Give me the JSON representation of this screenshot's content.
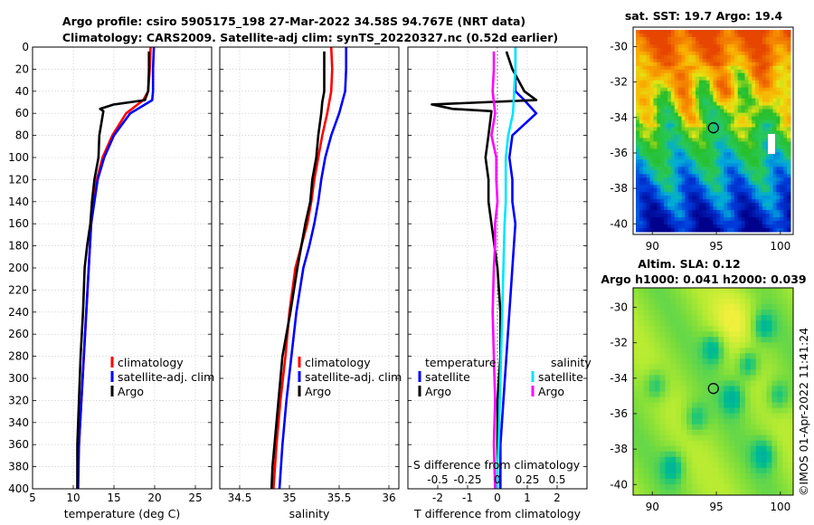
{
  "titles": {
    "line1": "Argo profile: csiro 5905175_198 27-Mar-2022 34.58S 94.767E (NRT data)",
    "line2": "Climatology: CARS2009. Satellite-adj clim: synTS_20220327.nc (0.52d earlier)",
    "sst": "sat. SST: 19.7 Argo: 19.4",
    "sla1": "Altim. SLA: 0.12",
    "sla2": "Argo h1000: 0.041 h2000: 0.039",
    "credit": "©IMOS 01-Apr-2022 11:41:24"
  },
  "colors": {
    "climatology": "#ff0000",
    "satellite": "#0000ff",
    "argo": "#000000",
    "sal_satellite": "#00e5ff",
    "sal_argo": "#ff00ff"
  },
  "chart_data": [
    {
      "type": "line",
      "title": "",
      "xlabel": "temperature (deg C)",
      "ylabel": "",
      "xlim": [
        5,
        27
      ],
      "ylim": [
        400,
        0
      ],
      "xticks": [
        "5",
        "10",
        "15",
        "20",
        "25"
      ],
      "yticks": [
        "0",
        "20",
        "40",
        "60",
        "80",
        "100",
        "120",
        "140",
        "160",
        "180",
        "200",
        "220",
        "240",
        "260",
        "280",
        "300",
        "320",
        "340",
        "360",
        "380",
        "400"
      ],
      "grid": true,
      "legend": {
        "position": "center-right",
        "entries": [
          "climatology",
          "satellite-adj. clim",
          "Argo"
        ]
      },
      "series": [
        {
          "name": "climatology",
          "color": "#ff0000",
          "x": [
            19.5,
            19.4,
            19.2,
            18.6,
            16.5,
            14.8,
            13.6,
            12.9,
            12.5,
            12.2,
            11.9,
            11.6,
            11.3,
            11.0,
            10.7,
            10.5
          ],
          "y": [
            0,
            20,
            40,
            48,
            60,
            80,
            100,
            120,
            140,
            160,
            200,
            240,
            280,
            320,
            360,
            400
          ]
        },
        {
          "name": "satellite-adj. clim",
          "color": "#0000ff",
          "x": [
            19.9,
            19.8,
            19.8,
            19.7,
            17.0,
            15.0,
            13.8,
            13.0,
            12.6,
            12.2,
            11.9,
            11.6,
            11.3,
            11.0,
            10.7,
            10.6
          ],
          "y": [
            0,
            20,
            40,
            48,
            60,
            80,
            100,
            120,
            140,
            160,
            200,
            240,
            280,
            320,
            360,
            400
          ]
        },
        {
          "name": "Argo",
          "color": "#000000",
          "x": [
            19.3,
            19.3,
            19.2,
            18.8,
            15.0,
            13.3,
            13.7,
            13.2,
            13.1,
            12.6,
            12.3,
            12.1,
            11.7,
            11.4,
            11.2,
            10.9,
            10.7,
            10.5,
            10.5
          ],
          "y": [
            4,
            20,
            40,
            48,
            52,
            56,
            58,
            80,
            100,
            120,
            140,
            160,
            180,
            200,
            240,
            280,
            320,
            360,
            400
          ]
        }
      ]
    },
    {
      "type": "line",
      "xlabel": "salinity",
      "xlim": [
        34.3,
        36.1
      ],
      "ylim": [
        400,
        0
      ],
      "xticks": [
        "34.5",
        "35",
        "35.5",
        "36"
      ],
      "grid": true,
      "legend": {
        "position": "center-right",
        "entries": [
          "climatology",
          "satellite-adj. clim",
          "Argo"
        ]
      },
      "series": [
        {
          "name": "climatology",
          "color": "#ff0000",
          "x": [
            35.42,
            35.43,
            35.42,
            35.38,
            35.33,
            35.29,
            35.25,
            35.22,
            35.18,
            35.12,
            35.06,
            35.0,
            34.96,
            34.91,
            34.87,
            34.84
          ],
          "y": [
            0,
            20,
            40,
            60,
            80,
            100,
            120,
            140,
            160,
            180,
            200,
            240,
            280,
            320,
            360,
            400
          ]
        },
        {
          "name": "satellite-adj. clim",
          "color": "#0000ff",
          "x": [
            35.57,
            35.57,
            35.56,
            35.5,
            35.42,
            35.36,
            35.32,
            35.29,
            35.25,
            35.2,
            35.14,
            35.07,
            35.02,
            34.97,
            34.93,
            34.9
          ],
          "y": [
            0,
            20,
            40,
            60,
            80,
            100,
            120,
            140,
            160,
            180,
            200,
            240,
            280,
            320,
            360,
            400
          ]
        },
        {
          "name": "Argo",
          "color": "#000000",
          "x": [
            35.35,
            35.35,
            35.35,
            35.33,
            35.32,
            35.29,
            35.27,
            35.23,
            35.21,
            35.16,
            35.14,
            35.08,
            35.01,
            34.97,
            34.93,
            34.89,
            34.85,
            34.83,
            34.82
          ],
          "y": [
            4,
            20,
            40,
            50,
            60,
            80,
            100,
            120,
            140,
            160,
            170,
            200,
            240,
            260,
            280,
            320,
            360,
            380,
            400
          ]
        }
      ]
    },
    {
      "type": "line",
      "xlabel": "T difference from climatology",
      "xlabel_top": "S difference from climatology",
      "xlim": [
        -3,
        3
      ],
      "xlim_top": [
        -0.75,
        0.75
      ],
      "ylim": [
        400,
        0
      ],
      "xticks": [
        "-2",
        "-1",
        "0",
        "1",
        "2"
      ],
      "xticks_top": [
        "-0.5",
        "-0.25",
        "0",
        "0.25",
        "0.5"
      ],
      "grid": true,
      "legend": {
        "position": "center",
        "group_titles": [
          "temperature",
          "salinity"
        ],
        "entries": [
          "satellite",
          "Argo",
          "satellite",
          "Argo"
        ]
      },
      "series": [
        {
          "name": "temperature satellite",
          "color": "#0000ff",
          "x": [
            0.6,
            0.6,
            0.6,
            0.9,
            1.3,
            0.5,
            0.4,
            0.5,
            0.5,
            0.6,
            0.5,
            0.4,
            0.3,
            0.2,
            0.1,
            0.1
          ],
          "y": [
            0,
            20,
            40,
            48,
            60,
            80,
            100,
            120,
            140,
            160,
            200,
            240,
            280,
            320,
            360,
            400
          ]
        },
        {
          "name": "temperature Argo",
          "color": "#000000",
          "x": [
            0.3,
            0.5,
            0.9,
            1.3,
            -2.2,
            -1.5,
            -0.2,
            -0.3,
            -0.4,
            -0.3,
            -0.3,
            -0.2,
            -0.1,
            0.0,
            0.1,
            0.1,
            0.0,
            0.0,
            0.0
          ],
          "y": [
            4,
            20,
            40,
            48,
            52,
            56,
            58,
            80,
            100,
            120,
            140,
            160,
            180,
            200,
            240,
            280,
            320,
            360,
            400
          ]
        },
        {
          "name": "salinity satellite",
          "color": "#00e5ff",
          "x": [
            0.15,
            0.15,
            0.14,
            0.13,
            0.09,
            0.07,
            0.07,
            0.07,
            0.06,
            0.05,
            0.04,
            0.03,
            0.02,
            0.01,
            0.0,
            0.0
          ],
          "y": [
            0,
            20,
            40,
            60,
            80,
            100,
            120,
            140,
            160,
            200,
            240,
            280,
            320,
            360,
            380,
            400
          ]
        },
        {
          "name": "salinity Argo",
          "color": "#ff00ff",
          "x": [
            -0.03,
            -0.03,
            -0.04,
            -0.02,
            -0.05,
            -0.01,
            -0.01,
            0.0,
            -0.02,
            -0.02,
            -0.03,
            -0.04,
            -0.03,
            -0.02,
            -0.03,
            -0.02
          ],
          "y": [
            4,
            20,
            40,
            60,
            80,
            100,
            120,
            140,
            160,
            180,
            200,
            240,
            280,
            320,
            360,
            400
          ]
        }
      ]
    },
    {
      "type": "heatmap",
      "title": "sat. SST: 19.7 Argo: 19.4",
      "xlim": [
        88.5,
        101
      ],
      "ylim": [
        -40.6,
        -28.9
      ],
      "xticks": [
        "90",
        "95",
        "100"
      ],
      "yticks": [
        "-30",
        "-32",
        "-34",
        "-36",
        "-38",
        "-40"
      ],
      "marker": {
        "lon": 94.77,
        "lat": -34.58
      }
    },
    {
      "type": "heatmap",
      "title": "Altim. SLA: 0.12 / Argo h1000: 0.041 h2000: 0.039",
      "xlim": [
        88.5,
        101
      ],
      "ylim": [
        -40.6,
        -28.9
      ],
      "xticks": [
        "90",
        "95",
        "100"
      ],
      "yticks": [
        "-30",
        "-32",
        "-34",
        "-36",
        "-38",
        "-40"
      ],
      "marker": {
        "lon": 94.77,
        "lat": -34.58
      }
    }
  ]
}
